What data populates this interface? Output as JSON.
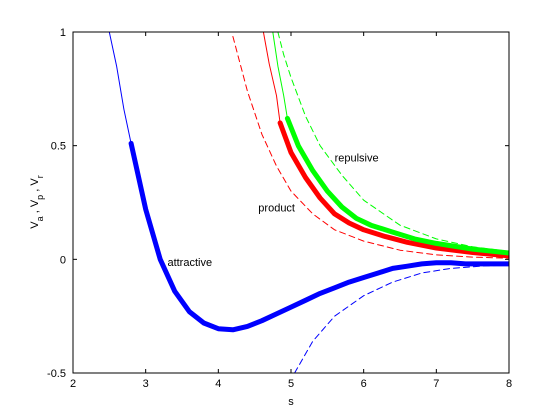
{
  "chart_data": {
    "type": "line",
    "xlabel": "s",
    "ylabel_parts": [
      {
        "text": "V",
        "sub": false
      },
      {
        "text": "a",
        "sub": true
      },
      {
        "text": " , V",
        "sub": false
      },
      {
        "text": "p",
        "sub": true
      },
      {
        "text": " , V",
        "sub": false
      },
      {
        "text": "r",
        "sub": true
      }
    ],
    "xlim": [
      2,
      8
    ],
    "ylim": [
      -0.5,
      1
    ],
    "xticks": [
      2,
      3,
      4,
      5,
      6,
      7,
      8
    ],
    "yticks": [
      -0.5,
      0,
      0.5,
      1
    ],
    "xtick_labels": [
      "2",
      "3",
      "4",
      "5",
      "6",
      "7",
      "8"
    ],
    "ytick_labels": [
      "-0.5",
      "0",
      "0.5",
      "1"
    ],
    "grid": false,
    "annotations": [
      {
        "text": "repulsive",
        "x": 5.6,
        "y": 0.43
      },
      {
        "text": "product",
        "x": 4.55,
        "y": 0.21
      },
      {
        "text": "attractive",
        "x": 3.3,
        "y": -0.03
      }
    ],
    "colors": {
      "attractive": "#0000ff",
      "product": "#ff0000",
      "repulsive": "#00ff00"
    },
    "series": [
      {
        "key": "attractive",
        "color": "#0000ff",
        "style": "thin",
        "points": [
          [
            2.5,
            1.0
          ],
          [
            2.6,
            0.85
          ],
          [
            2.7,
            0.66
          ],
          [
            2.8,
            0.51
          ]
        ]
      },
      {
        "key": "attractive",
        "color": "#0000ff",
        "style": "thick",
        "points": [
          [
            2.8,
            0.51
          ],
          [
            3.0,
            0.22
          ],
          [
            3.2,
            0.0
          ],
          [
            3.4,
            -0.14
          ],
          [
            3.6,
            -0.23
          ],
          [
            3.8,
            -0.28
          ],
          [
            4.0,
            -0.305
          ],
          [
            4.2,
            -0.31
          ],
          [
            4.4,
            -0.295
          ],
          [
            4.6,
            -0.27
          ],
          [
            4.8,
            -0.24
          ],
          [
            5.0,
            -0.21
          ],
          [
            5.2,
            -0.18
          ],
          [
            5.4,
            -0.15
          ],
          [
            5.6,
            -0.125
          ],
          [
            5.8,
            -0.1
          ],
          [
            6.0,
            -0.08
          ],
          [
            6.2,
            -0.06
          ],
          [
            6.4,
            -0.04
          ],
          [
            6.6,
            -0.03
          ],
          [
            6.8,
            -0.02
          ],
          [
            7.0,
            -0.015
          ],
          [
            7.2,
            -0.015
          ],
          [
            7.4,
            -0.02
          ],
          [
            7.6,
            -0.02
          ],
          [
            7.8,
            -0.02
          ],
          [
            8.0,
            -0.02
          ]
        ]
      },
      {
        "key": "attractive",
        "color": "#0000ff",
        "style": "dashed",
        "points": [
          [
            5.05,
            -0.5
          ],
          [
            5.3,
            -0.36
          ],
          [
            5.6,
            -0.25
          ],
          [
            6.0,
            -0.16
          ],
          [
            6.4,
            -0.1
          ],
          [
            6.8,
            -0.06
          ],
          [
            7.2,
            -0.04
          ],
          [
            7.6,
            -0.03
          ],
          [
            8.0,
            -0.025
          ]
        ]
      },
      {
        "key": "product",
        "color": "#ff0000",
        "style": "dashed",
        "points": [
          [
            4.2,
            0.98
          ],
          [
            4.4,
            0.74
          ],
          [
            4.6,
            0.55
          ],
          [
            4.8,
            0.41
          ],
          [
            5.0,
            0.3
          ],
          [
            5.3,
            0.2
          ],
          [
            5.6,
            0.13
          ],
          [
            6.0,
            0.08
          ],
          [
            6.5,
            0.04
          ],
          [
            7.0,
            0.02
          ],
          [
            7.5,
            0.01
          ],
          [
            8.0,
            0.005
          ]
        ]
      },
      {
        "key": "product",
        "color": "#ff0000",
        "style": "thin",
        "points": [
          [
            4.62,
            1.0
          ],
          [
            4.7,
            0.86
          ],
          [
            4.8,
            0.72
          ],
          [
            4.85,
            0.6
          ]
        ]
      },
      {
        "key": "product",
        "color": "#ff0000",
        "style": "thick",
        "points": [
          [
            4.85,
            0.6
          ],
          [
            5.0,
            0.47
          ],
          [
            5.2,
            0.36
          ],
          [
            5.4,
            0.27
          ],
          [
            5.6,
            0.2
          ],
          [
            5.8,
            0.16
          ],
          [
            6.0,
            0.13
          ],
          [
            6.3,
            0.1
          ],
          [
            6.6,
            0.075
          ],
          [
            7.0,
            0.05
          ],
          [
            7.5,
            0.03
          ],
          [
            8.0,
            0.015
          ]
        ]
      },
      {
        "key": "repulsive",
        "color": "#00ff00",
        "style": "dashed",
        "points": [
          [
            4.82,
            1.0
          ],
          [
            4.9,
            0.9
          ],
          [
            5.0,
            0.8
          ],
          [
            5.2,
            0.63
          ],
          [
            5.4,
            0.5
          ],
          [
            5.7,
            0.37
          ],
          [
            6.0,
            0.26
          ],
          [
            6.5,
            0.15
          ],
          [
            7.0,
            0.09
          ],
          [
            7.5,
            0.055
          ],
          [
            8.0,
            0.035
          ]
        ]
      },
      {
        "key": "repulsive",
        "color": "#00ff00",
        "style": "thin",
        "points": [
          [
            4.75,
            1.0
          ],
          [
            4.82,
            0.85
          ],
          [
            4.9,
            0.72
          ],
          [
            4.95,
            0.62
          ]
        ]
      },
      {
        "key": "repulsive",
        "color": "#00ff00",
        "style": "thick",
        "points": [
          [
            4.95,
            0.62
          ],
          [
            5.1,
            0.5
          ],
          [
            5.3,
            0.39
          ],
          [
            5.5,
            0.3
          ],
          [
            5.7,
            0.23
          ],
          [
            5.9,
            0.18
          ],
          [
            6.1,
            0.15
          ],
          [
            6.4,
            0.12
          ],
          [
            6.7,
            0.09
          ],
          [
            7.0,
            0.07
          ],
          [
            7.5,
            0.045
          ],
          [
            8.0,
            0.028
          ]
        ]
      }
    ]
  }
}
